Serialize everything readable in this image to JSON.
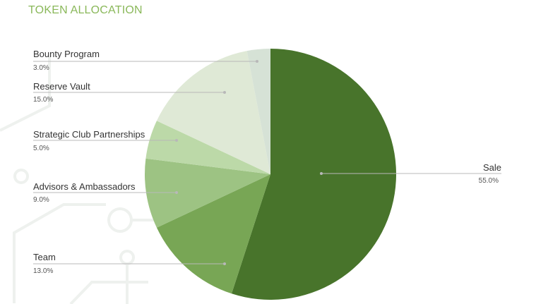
{
  "chart_data": {
    "type": "pie",
    "title": "TOKEN ALLOCATION",
    "slices": [
      {
        "label": "Sale",
        "value": 55.0,
        "value_label": "55.0%",
        "color": "#48742b"
      },
      {
        "label": "Team",
        "value": 13.0,
        "value_label": "13.0%",
        "color": "#78a655"
      },
      {
        "label": "Advisors & Ambassadors",
        "value": 9.0,
        "value_label": "9.0%",
        "color": "#9dc383"
      },
      {
        "label": "Strategic Club Partnerships",
        "value": 5.0,
        "value_label": "5.0%",
        "color": "#bcd9a8"
      },
      {
        "label": "Reserve Vault",
        "value": 15.0,
        "value_label": "15.0%",
        "color": "#dfe9d6"
      },
      {
        "label": "Bounty Program",
        "value": 3.0,
        "value_label": "3.0%",
        "color": "#d6e2d6"
      }
    ],
    "colors": {
      "title": "#8ab85a",
      "leader": "#b8b8b8"
    }
  }
}
